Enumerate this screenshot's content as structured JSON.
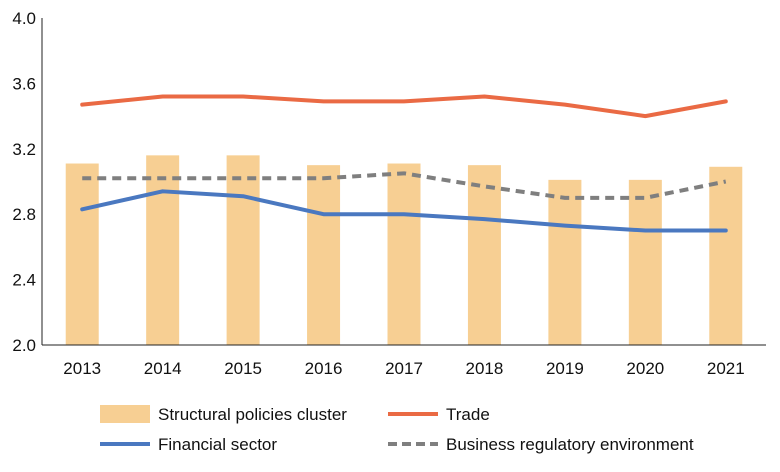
{
  "chart_data": {
    "type": "bar",
    "title": "",
    "xlabel": "",
    "ylabel": "",
    "ylim": [
      2.0,
      4.0
    ],
    "yticks": [
      "2.0",
      "2.4",
      "2.8",
      "3.2",
      "3.6",
      "4.0"
    ],
    "ytick_values": [
      2.0,
      2.4,
      2.8,
      3.2,
      3.6,
      4.0
    ],
    "categories": [
      "2013",
      "2014",
      "2015",
      "2016",
      "2017",
      "2018",
      "2019",
      "2020",
      "2021"
    ],
    "series": [
      {
        "name": "Structural policies cluster",
        "kind": "bar",
        "color": "#f7cf93",
        "values": [
          3.11,
          3.16,
          3.16,
          3.1,
          3.11,
          3.1,
          3.01,
          3.01,
          3.09
        ]
      },
      {
        "name": "Trade",
        "kind": "line",
        "style": "solid",
        "color": "#ea6a44",
        "values": [
          3.47,
          3.52,
          3.52,
          3.49,
          3.49,
          3.52,
          3.47,
          3.4,
          3.49
        ]
      },
      {
        "name": "Financial sector",
        "kind": "line",
        "style": "solid",
        "color": "#4a78c0",
        "values": [
          2.83,
          2.94,
          2.91,
          2.8,
          2.8,
          2.77,
          2.73,
          2.7,
          2.7
        ]
      },
      {
        "name": "Business regulatory environment",
        "kind": "line",
        "style": "dashed",
        "color": "#7f7f7f",
        "values": [
          3.02,
          3.02,
          3.02,
          3.02,
          3.05,
          2.97,
          2.9,
          2.9,
          3.0
        ]
      }
    ],
    "legend": {
      "placement": "bottom"
    }
  }
}
